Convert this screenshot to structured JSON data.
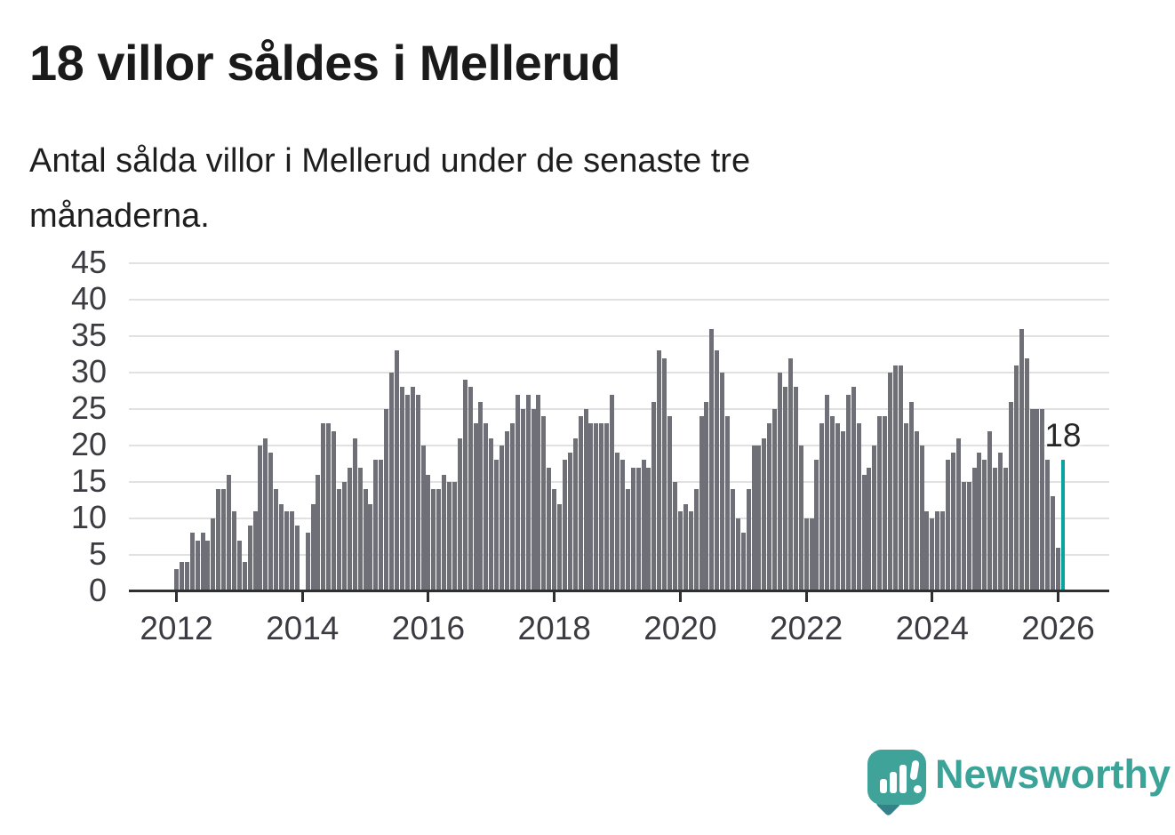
{
  "header": {
    "title": "18 villor såldes i Mellerud",
    "subtitle": "Antal sålda villor i Mellerud under de senaste tre månaderna."
  },
  "chart_data": {
    "type": "bar",
    "title": "18 villor såldes i Mellerud",
    "subtitle": "Antal sålda villor i Mellerud under de senaste tre månaderna.",
    "xlabel": "",
    "ylabel": "",
    "x_start": "2012-01",
    "x_end": "2026-02",
    "frequency": "monthly",
    "ylim": [
      0,
      45
    ],
    "yticks": [
      0,
      5,
      10,
      15,
      20,
      25,
      30,
      35,
      40,
      45
    ],
    "xticks": [
      2012,
      2014,
      2016,
      2018,
      2020,
      2022,
      2024,
      2026
    ],
    "grid": "horizontal",
    "bar_color": "#6f6f78",
    "highlight_color": "#0aa49e",
    "highlight_last": true,
    "annotation": {
      "text": "18",
      "value": 18
    },
    "series": [
      {
        "name": "Antal sålda villor",
        "values": [
          3,
          4,
          4,
          8,
          7,
          8,
          7,
          10,
          14,
          14,
          16,
          11,
          7,
          4,
          9,
          11,
          20,
          21,
          19,
          14,
          12,
          11,
          11,
          9,
          0,
          8,
          12,
          16,
          23,
          23,
          22,
          14,
          15,
          17,
          21,
          17,
          14,
          12,
          18,
          18,
          25,
          30,
          33,
          28,
          27,
          28,
          27,
          20,
          16,
          14,
          14,
          16,
          15,
          15,
          21,
          29,
          28,
          23,
          26,
          23,
          21,
          18,
          20,
          22,
          23,
          27,
          25,
          27,
          25,
          27,
          24,
          17,
          14,
          12,
          18,
          19,
          21,
          24,
          25,
          23,
          23,
          23,
          23,
          27,
          19,
          18,
          14,
          17,
          17,
          18,
          17,
          26,
          33,
          32,
          24,
          15,
          11,
          12,
          11,
          14,
          24,
          26,
          36,
          33,
          30,
          24,
          14,
          10,
          8,
          14,
          20,
          20,
          21,
          23,
          25,
          30,
          28,
          32,
          28,
          20,
          10,
          10,
          18,
          23,
          27,
          24,
          23,
          22,
          27,
          28,
          23,
          16,
          17,
          20,
          24,
          24,
          30,
          31,
          31,
          23,
          26,
          22,
          20,
          11,
          10,
          11,
          11,
          18,
          19,
          21,
          15,
          15,
          17,
          19,
          18,
          22,
          17,
          19,
          17,
          26,
          31,
          36,
          32,
          25,
          25,
          25,
          18,
          13,
          6,
          18
        ]
      }
    ]
  },
  "footer": {
    "brand": "Newsworthy",
    "logo_icon": "speech-bubble-bar-chart-icon"
  }
}
